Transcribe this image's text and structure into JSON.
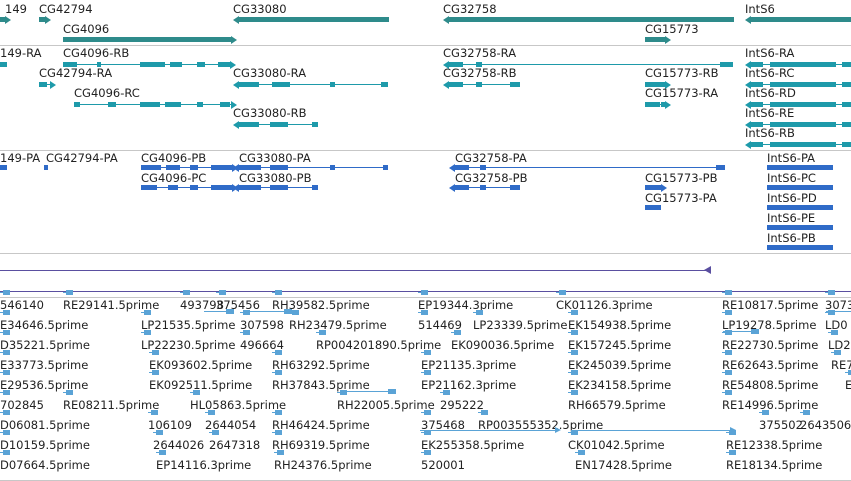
{
  "colors": {
    "gene": "#2e8b8b",
    "mrna": "#1e9aaa",
    "protein": "#2f6bc8",
    "cdna": "#5aa3d6",
    "chain": "#5a4fa0"
  },
  "tracks": {
    "genes": {
      "labels": [
        "149",
        "CG42794",
        "CG4096",
        "CG33080",
        "CG32758",
        "CG15773",
        "IntS6"
      ]
    },
    "transcripts": {
      "labels": [
        "149-RA",
        "CG4096-RB",
        "CG42794-RA",
        "CG4096-RC",
        "CG33080-RA",
        "CG33080-RB",
        "CG32758-RA",
        "CG32758-RB",
        "CG15773-RB",
        "CG15773-RA",
        "IntS6-RA",
        "IntS6-RC",
        "IntS6-RD",
        "IntS6-RE",
        "IntS6-RB"
      ]
    },
    "proteins": {
      "labels": [
        "149-PA",
        "CG42794-PA",
        "CG4096-PB",
        "CG4096-PC",
        "CG33080-PA",
        "CG33080-PB",
        "CG32758-PA",
        "CG32758-PB",
        "CG15773-PB",
        "CG15773-PA",
        "IntS6-PA",
        "IntS6-PC",
        "IntS6-PD",
        "IntS6-PE",
        "IntS6-PB"
      ]
    },
    "cdna": {
      "labels": [
        "546140",
        "RE29141.5prime",
        "493798",
        "375456",
        "RH39582.5prime",
        "EP19344.3prime",
        "CK01126.3prime",
        "RE10817.5prime",
        "3073",
        "E34646.5prime",
        "LP21535.5prime",
        "307598",
        "RH23479.5prime",
        "514469",
        "LP23339.5prime",
        "EK154938.5prime",
        "LP19278.5prime",
        "LD0",
        "D35221.5prime",
        "LP22230.5prime",
        "496664",
        "RP004201890.5prime",
        "EK090036.5prime",
        "EK157245.5prime",
        "RE22730.5prime",
        "LD2",
        "E33773.5prime",
        "EK093602.5prime",
        "RH63292.5prime",
        "EP21135.3prime",
        "EK245039.5prime",
        "RE62643.5prime",
        "RE7",
        "E29536.5prime",
        "EK092511.5prime",
        "RH37843.5prime",
        "EP21162.3prime",
        "EK234158.5prime",
        "RE54808.5prime",
        "E",
        "702845",
        "RE08211.5prime",
        "HL05863.5prime",
        "RH22005.5prime",
        "295222",
        "RH66579.5prime",
        "RE14996.5prime",
        "D06081.5prime",
        "106109",
        "2644054",
        "RH46424.5prime",
        "375468",
        "RP003555352.5prime",
        "375502",
        "2643506",
        "D10159.5prime",
        "2644026",
        "2647318",
        "RH69319.5prime",
        "EK255358.5prime",
        "CK01042.5prime",
        "RE12338.5prime",
        "D07664.5prime",
        "EP14116.3prime",
        "RH24376.5prime",
        "520001",
        "EN17428.5prime",
        "RE18134.5prime"
      ]
    }
  }
}
